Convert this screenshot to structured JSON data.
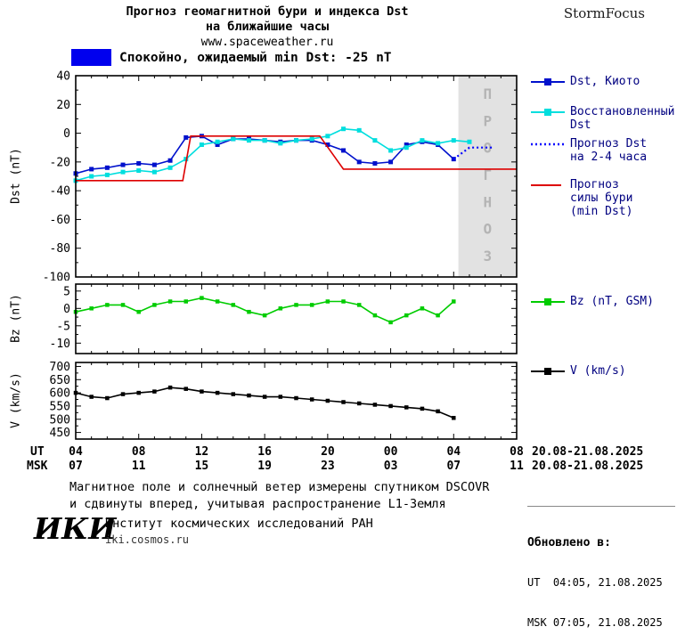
{
  "header": {
    "title_line1": "Прогноз геомагнитной бури и индекса Dst",
    "title_line2": "на ближайшие часы",
    "site": "www.spaceweather.ru",
    "brand": "StormFocus"
  },
  "status": {
    "text": "Спокойно, ожидаемый min Dst: -25 nT",
    "swatch_color": "#0000ee"
  },
  "legend": {
    "dst_kyoto": {
      "label": "Dst, Киото",
      "color": "#0011cc"
    },
    "dst_restored": {
      "line1": "Восстановленный",
      "line2": "Dst",
      "color": "#00dede"
    },
    "dst_forecast": {
      "line1": "Прогноз Dst",
      "line2": "на 2-4 часа",
      "color": "#0000ff"
    },
    "storm_forecast": {
      "line1": "Прогноз",
      "line2": "силы бури",
      "line3": "(min Dst)",
      "color": "#dd0000"
    },
    "bz": {
      "label": "Bz (nT, GSM)",
      "color": "#00cc00"
    },
    "v": {
      "label": "V (km/s)",
      "color": "#000000"
    }
  },
  "axes": {
    "dst_ylabel": "Dst (nT)",
    "bz_ylabel": "Bz (nT)",
    "v_ylabel": "V (km/s)",
    "ut_label": "UT",
    "msk_label": "MSK",
    "ut_ticks": [
      "04",
      "08",
      "12",
      "16",
      "20",
      "00",
      "04",
      "08"
    ],
    "msk_ticks": [
      "07",
      "11",
      "15",
      "19",
      "23",
      "03",
      "07",
      "11"
    ],
    "ut_date": "20.08-21.08.2025",
    "msk_date": "20.08-21.08.2025"
  },
  "watermark": "ПРОГНОЗ",
  "footer": {
    "note_line1": "Магнитное поле и солнечный ветер измерены спутником DSCOVR",
    "note_line2": "и сдвинуты вперед, учитывая распространение L1-Земля",
    "logo": "ИКИ",
    "institute": "Институт космических исследований РАН",
    "site": "iki.cosmos.ru",
    "updated_label": "Обновлено в:",
    "updated_ut": "UT  04:05, 21.08.2025",
    "updated_msk": "MSK 07:05, 21.08.2025"
  },
  "chart_data": [
    {
      "type": "line",
      "panel": "dst",
      "title": "Прогноз геомагнитной бури и индекса Dst на ближайшие часы",
      "ylabel": "Dst (nT)",
      "ylim": [
        -100,
        40
      ],
      "yticks": [
        40,
        20,
        0,
        -20,
        -40,
        -60,
        -80,
        -100
      ],
      "xlim": [
        4,
        32
      ],
      "xticks": [
        4,
        8,
        12,
        16,
        20,
        24,
        28,
        32
      ],
      "forecast_band": [
        28.3,
        32
      ],
      "watermark": "ПРОГНОЗ",
      "legend_position": "right",
      "grid": false,
      "series": [
        {
          "name": "Dst, Киото",
          "color": "#0011cc",
          "marker": "square",
          "marker_size": 5,
          "x": [
            4,
            5,
            6,
            7,
            8,
            9,
            10,
            11,
            12,
            13,
            14,
            15,
            16,
            17,
            18,
            19,
            20,
            21,
            22,
            23,
            24,
            25,
            26,
            27,
            28
          ],
          "y": [
            -28,
            -25,
            -24,
            -22,
            -21,
            -22,
            -19,
            -3,
            -2,
            -8,
            -4,
            -4,
            -5,
            -6,
            -5,
            -5,
            -8,
            -12,
            -20,
            -21,
            -20,
            -8,
            -6,
            -8,
            -18
          ]
        },
        {
          "name": "Восстановленный Dst",
          "color": "#00dede",
          "marker": "square",
          "marker_size": 5,
          "x": [
            4,
            5,
            6,
            7,
            8,
            9,
            10,
            11,
            12,
            13,
            14,
            15,
            16,
            17,
            18,
            19,
            20,
            21,
            22,
            23,
            24,
            25,
            26,
            27,
            28,
            29
          ],
          "y": [
            -33,
            -30,
            -29,
            -27,
            -26,
            -27,
            -24,
            -18,
            -8,
            -6,
            -4,
            -5,
            -5,
            -7,
            -5,
            -4,
            -2,
            3,
            2,
            -5,
            -12,
            -10,
            -5,
            -7,
            -5,
            -6
          ]
        },
        {
          "name": "Прогноз Dst на 2-4 часа",
          "color": "#0000ff",
          "style": "dotted",
          "x": [
            28,
            29,
            30.5
          ],
          "y": [
            -18,
            -10,
            -10
          ]
        },
        {
          "name": "Прогноз силы бури (min Dst)",
          "color": "#dd0000",
          "x": [
            4,
            10.8,
            11.3,
            19.5,
            21,
            32
          ],
          "y": [
            -33,
            -33,
            -2,
            -2,
            -25,
            -25
          ]
        }
      ]
    },
    {
      "type": "line",
      "panel": "bz",
      "ylabel": "Bz (nT)",
      "ylim": [
        -13,
        7
      ],
      "yticks": [
        5,
        0,
        -5,
        -10
      ],
      "xlim": [
        4,
        32
      ],
      "xticks": [
        4,
        8,
        12,
        16,
        20,
        24,
        28,
        32
      ],
      "grid": false,
      "series": [
        {
          "name": "Bz (nT, GSM)",
          "color": "#00cc00",
          "marker": "square",
          "marker_size": 4.5,
          "x": [
            4,
            5,
            6,
            7,
            8,
            9,
            10,
            11,
            12,
            13,
            14,
            15,
            16,
            17,
            18,
            19,
            20,
            21,
            22,
            23,
            24,
            25,
            26,
            27,
            28
          ],
          "y": [
            -1,
            0,
            1,
            1,
            -1,
            1,
            2,
            2,
            3,
            2,
            1,
            -1,
            -2,
            0,
            1,
            1,
            2,
            2,
            1,
            -2,
            -4,
            -2,
            0,
            -2,
            2
          ]
        }
      ]
    },
    {
      "type": "line",
      "panel": "v",
      "ylabel": "V (km/s)",
      "ylim": [
        425,
        715
      ],
      "yticks": [
        700,
        650,
        600,
        550,
        500,
        450
      ],
      "xlim": [
        4,
        32
      ],
      "xticks": [
        4,
        8,
        12,
        16,
        20,
        24,
        28,
        32
      ],
      "grid": false,
      "series": [
        {
          "name": "V (km/s)",
          "color": "#000000",
          "marker": "square",
          "marker_size": 4.5,
          "x": [
            4,
            5,
            6,
            7,
            8,
            9,
            10,
            11,
            12,
            13,
            14,
            15,
            16,
            17,
            18,
            19,
            20,
            21,
            22,
            23,
            24,
            25,
            26,
            27,
            28
          ],
          "y": [
            600,
            585,
            580,
            595,
            600,
            605,
            620,
            615,
            605,
            600,
            595,
            590,
            585,
            585,
            580,
            575,
            570,
            565,
            560,
            555,
            550,
            545,
            540,
            530,
            505
          ]
        }
      ]
    }
  ]
}
